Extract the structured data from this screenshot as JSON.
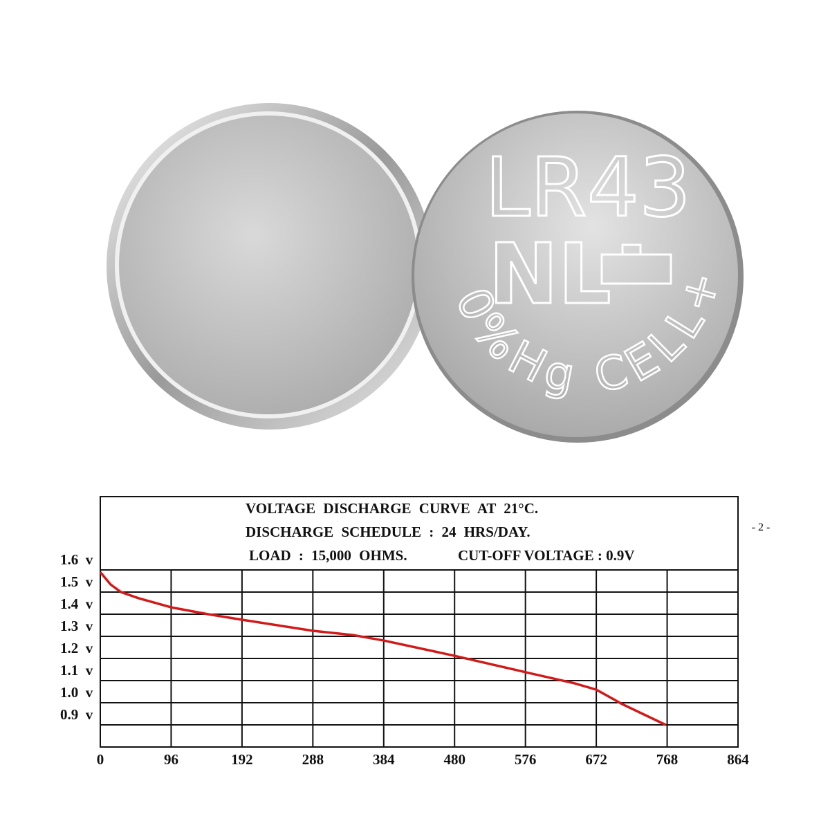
{
  "battery": {
    "model": "LR43",
    "logo": "NL",
    "marking": "0%Hg CELL+"
  },
  "page_number": "- 2 -",
  "chart_data": {
    "type": "line",
    "title": "VOLTAGE DISCHARGE CURVE AT 21°C.",
    "notes": [
      "DISCHARGE SCHEDULE : 24 HRS/DAY.",
      "LOAD : 15,000 OHMS.",
      "CUT-OFF VOLTAGE : 0.9V"
    ],
    "x": [
      0,
      14,
      28,
      52,
      96,
      146,
      192,
      288,
      342,
      384,
      480,
      576,
      642,
      672,
      707,
      766
    ],
    "series": [
      {
        "name": "",
        "color": "#d11a1a",
        "values": [
          1.59,
          1.534,
          1.5,
          1.472,
          1.431,
          1.4,
          1.375,
          1.325,
          1.306,
          1.281,
          1.212,
          1.138,
          1.088,
          1.059,
          0.994,
          0.9
        ]
      }
    ],
    "xlim": [
      0,
      864
    ],
    "xticks": [
      0,
      96,
      192,
      288,
      384,
      480,
      576,
      672,
      768,
      864
    ],
    "ylim": [
      0.8,
      1.6
    ],
    "yticks": [
      {
        "value": 0.9,
        "label": "0.9  v"
      },
      {
        "value": 1.0,
        "label": "1.0  v"
      },
      {
        "value": 1.1,
        "label": "1.1  v"
      },
      {
        "value": 1.2,
        "label": "1.2  v"
      },
      {
        "value": 1.3,
        "label": "1.3  v"
      },
      {
        "value": 1.4,
        "label": "1.4  v"
      },
      {
        "value": 1.5,
        "label": "1.5  v"
      },
      {
        "value": 1.6,
        "label": "1.6  v"
      }
    ],
    "grid": true
  }
}
